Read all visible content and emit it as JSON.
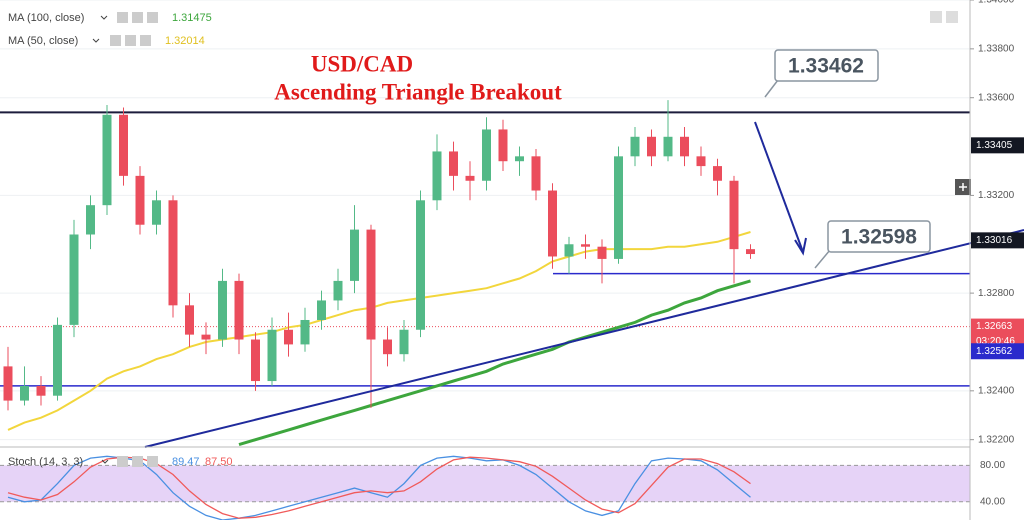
{
  "chart_data": {
    "type": "candlestick",
    "title": "USD/CAD",
    "subtitle": "Ascending Triangle Breakout",
    "open": [
      1.325,
      1.3236,
      1.3242,
      1.3238,
      1.3267,
      1.3304,
      1.3316,
      1.3353,
      1.3328,
      1.3308,
      1.3318,
      1.3275,
      1.3263,
      1.3261,
      1.3285,
      1.3261,
      1.3244,
      1.3265,
      1.3259,
      1.3269,
      1.3277,
      1.3285,
      1.3306,
      1.3261,
      1.3255,
      1.3265,
      1.3318,
      1.3338,
      1.3328,
      1.3326,
      1.3347,
      1.3334,
      1.3336,
      1.3322,
      1.3295,
      1.33,
      1.3299,
      1.3294,
      1.3336,
      1.3344,
      1.3336,
      1.3344,
      1.3336,
      1.3332,
      1.3326,
      1.3298
    ],
    "high": [
      1.3258,
      1.325,
      1.3246,
      1.327,
      1.331,
      1.332,
      1.3357,
      1.3356,
      1.3332,
      1.3322,
      1.332,
      1.328,
      1.3268,
      1.329,
      1.3288,
      1.3264,
      1.327,
      1.3272,
      1.3274,
      1.3281,
      1.329,
      1.3316,
      1.3308,
      1.3266,
      1.3269,
      1.3322,
      1.3345,
      1.3342,
      1.3334,
      1.3352,
      1.3351,
      1.334,
      1.3339,
      1.3325,
      1.3303,
      1.3304,
      1.3302,
      1.334,
      1.3348,
      1.3347,
      1.3359,
      1.3348,
      1.334,
      1.3335,
      1.3328,
      1.33
    ],
    "low": [
      1.3232,
      1.3234,
      1.3234,
      1.3236,
      1.3262,
      1.3298,
      1.3312,
      1.3324,
      1.3304,
      1.3304,
      1.327,
      1.3258,
      1.3255,
      1.3258,
      1.3255,
      1.324,
      1.3242,
      1.3254,
      1.3256,
      1.3265,
      1.3273,
      1.328,
      1.3233,
      1.325,
      1.3252,
      1.3262,
      1.3314,
      1.3322,
      1.3318,
      1.3322,
      1.333,
      1.3328,
      1.3318,
      1.329,
      1.3288,
      1.3294,
      1.3284,
      1.3292,
      1.3332,
      1.3332,
      1.3334,
      1.3332,
      1.3328,
      1.332,
      1.3284,
      1.3294
    ],
    "close": [
      1.3236,
      1.3242,
      1.3238,
      1.3267,
      1.3304,
      1.3316,
      1.3353,
      1.3328,
      1.3308,
      1.3318,
      1.3275,
      1.3263,
      1.3261,
      1.3285,
      1.3261,
      1.3244,
      1.3265,
      1.3259,
      1.3269,
      1.3277,
      1.3285,
      1.3306,
      1.3261,
      1.3255,
      1.3265,
      1.3318,
      1.3338,
      1.3328,
      1.3326,
      1.3347,
      1.3334,
      1.3336,
      1.3322,
      1.3295,
      1.33,
      1.3299,
      1.3294,
      1.3336,
      1.3344,
      1.3336,
      1.3344,
      1.3336,
      1.3332,
      1.3326,
      1.3298,
      1.3296
    ],
    "up_color": "#53b987",
    "down_color": "#eb4d5c",
    "indicators": [
      {
        "name": "MA (100, close)",
        "value": 1.31475,
        "color": "#3da63d",
        "values": [
          null,
          null,
          null,
          null,
          null,
          null,
          null,
          null,
          null,
          null,
          null,
          null,
          null,
          null,
          1.3218,
          1.322,
          1.3222,
          1.3224,
          1.3226,
          1.3228,
          1.323,
          1.3232,
          1.3234,
          1.3236,
          1.3238,
          1.324,
          1.3242,
          1.3244,
          1.3246,
          1.3248,
          1.3251,
          1.3253,
          1.3255,
          1.3257,
          1.326,
          1.3262,
          1.3264,
          1.3266,
          1.3268,
          1.3271,
          1.3273,
          1.3276,
          1.3278,
          1.3281,
          1.3283,
          1.3285
        ]
      },
      {
        "name": "MA (50, close)",
        "value": 1.32014,
        "color": "#f2d63c",
        "values": [
          1.3224,
          1.3227,
          1.3229,
          1.3232,
          1.3236,
          1.324,
          1.3245,
          1.3248,
          1.325,
          1.3253,
          1.3255,
          1.3258,
          1.326,
          1.3261,
          1.3262,
          1.3263,
          1.3264,
          1.3266,
          1.3267,
          1.3269,
          1.3271,
          1.3273,
          1.3274,
          1.3276,
          1.3277,
          1.3278,
          1.3279,
          1.328,
          1.3281,
          1.3282,
          1.3284,
          1.3286,
          1.3289,
          1.3293,
          1.3295,
          1.3297,
          1.3298,
          1.3298,
          1.3298,
          1.3298,
          1.3299,
          1.3299,
          1.33,
          1.3301,
          1.3303,
          1.3305
        ]
      }
    ],
    "ylim": [
      1.3217,
      1.34
    ],
    "yticks": [
      {
        "value": 1.322,
        "label": "1.32200"
      },
      {
        "value": 1.324,
        "label": "1.32400"
      },
      {
        "value": 1.328,
        "label": "1.32800"
      },
      {
        "value": 1.332,
        "label": "1.33200"
      },
      {
        "value": 1.336,
        "label": "1.33600"
      },
      {
        "value": 1.338,
        "label": "1.33800"
      },
      {
        "value": 1.34,
        "label": "1.34000"
      }
    ],
    "levels": [
      {
        "value": 1.3354,
        "color": "#1c1c3c"
      },
      {
        "value": 1.3242,
        "color": "#2a2acc"
      },
      {
        "value": 1.3288,
        "color": "#2a2acc"
      }
    ],
    "callouts": [
      1.33462,
      1.32598
    ],
    "price_tags": [
      1.33405,
      1.33016,
      1.32663,
      1.32562
    ],
    "price_tag_colors": [
      "#131722",
      "#131722",
      "#eb4d5c",
      "#2a2acc"
    ],
    "countdown": "03:20:46",
    "stoch": {
      "name": "Stoch (14, 3, 3)",
      "readouts": [
        89.47,
        {
          "value": 87.5,
          "label": "87.50"
        }
      ],
      "series": [
        {
          "color": "#4a90e2",
          "values": [
            45,
            40,
            42,
            60,
            80,
            88,
            90,
            88,
            85,
            70,
            50,
            35,
            25,
            20,
            22,
            25,
            30,
            35,
            40,
            45,
            50,
            55,
            50,
            45,
            60,
            80,
            88,
            90,
            88,
            85,
            86,
            80,
            70,
            55,
            40,
            30,
            25,
            30,
            60,
            85,
            88,
            87,
            85,
            75,
            60,
            45
          ]
        },
        {
          "color": "#f05a5a",
          "values": [
            50,
            45,
            42,
            48,
            62,
            78,
            87,
            89,
            88,
            82,
            70,
            52,
            37,
            27,
            22,
            23,
            26,
            30,
            35,
            40,
            45,
            50,
            52,
            50,
            52,
            62,
            76,
            86,
            89,
            88,
            86,
            84,
            79,
            68,
            55,
            42,
            32,
            28,
            38,
            58,
            78,
            87,
            87,
            82,
            73,
            60
          ]
        }
      ],
      "ylim": [
        20,
        98
      ],
      "yticks": [
        {
          "value": 80,
          "label": "80.00"
        },
        {
          "value": 40,
          "label": "40.00"
        }
      ],
      "band_color": "#e6d3f7"
    }
  }
}
